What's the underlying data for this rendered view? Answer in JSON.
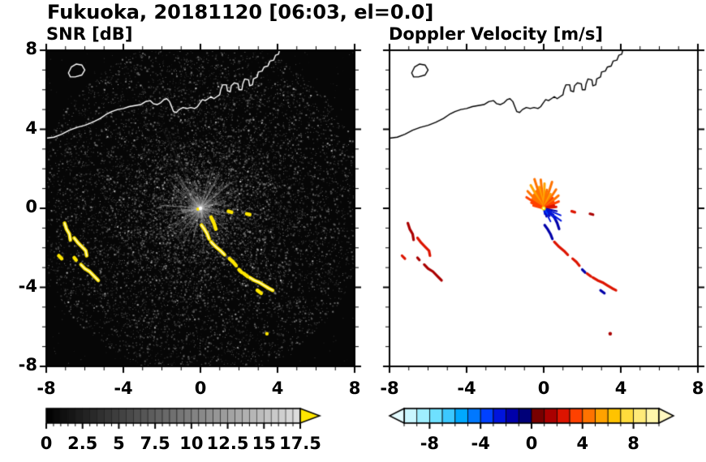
{
  "page": {
    "title": "Fukuoka, 20181120 [06:03, el=0.0]"
  },
  "chart_data": {
    "type": "heatmap",
    "variant": "radar_ppi_pair",
    "site": "Fukuoka",
    "date": "20181120",
    "time": "06:03",
    "elevation": "0.0",
    "axes": {
      "xlim": [
        -8,
        8
      ],
      "ylim": [
        -8,
        8
      ],
      "xtick_values": [
        -8,
        -4,
        0,
        4,
        8
      ],
      "xtick_labels": [
        "-8",
        "-4",
        "0",
        "4",
        "8"
      ],
      "ytick_values": [
        8,
        4,
        0,
        -4,
        -8
      ],
      "ytick_labels": [
        "8",
        "4",
        "0",
        "-4",
        "-8"
      ],
      "minor_step": 1
    },
    "radar_center": [
      0,
      0
    ],
    "panels": [
      {
        "id": "snr",
        "title": "SNR [dB]",
        "bg": "#060606",
        "coast_color": "#ffffff",
        "echo_color": "#ffe600",
        "colorbar": {
          "min": 0,
          "max": 17.5,
          "step": 0.5,
          "tick_values": [
            0,
            2.5,
            5,
            7.5,
            10,
            12.5,
            15,
            17.5
          ],
          "tick_labels": [
            "0",
            "2.5",
            "5",
            "7.5",
            "10",
            "12.5",
            "15",
            "17.5"
          ],
          "style": "grayscale",
          "over_color": "#ffe600"
        }
      },
      {
        "id": "doppler",
        "title": "Doppler Velocity [m/s]",
        "bg": "#ffffff",
        "coast_color": "#000000",
        "colorbar": {
          "min": -10,
          "max": 10,
          "step": 1,
          "tick_values": [
            -8,
            -4,
            0,
            4,
            8
          ],
          "tick_labels": [
            "-8",
            "-4",
            "0",
            "4",
            "8"
          ],
          "colors": [
            "#c9f6ff",
            "#9feeff",
            "#6ee0ff",
            "#3cc8ff",
            "#00a8ff",
            "#0078ff",
            "#0041ff",
            "#0014dd",
            "#0000aa",
            "#000078",
            "#780000",
            "#aa0000",
            "#dd1400",
            "#ff4100",
            "#ff7300",
            "#ffa200",
            "#ffc300",
            "#ffdc3c",
            "#ffea78",
            "#fff6aa"
          ],
          "under_color": "#e4fbff",
          "over_color": "#fff7c0"
        }
      }
    ],
    "coastline": [
      [
        [
          -8.0,
          3.55
        ],
        [
          -7.6,
          3.6
        ],
        [
          -7.2,
          3.75
        ],
        [
          -6.8,
          3.95
        ],
        [
          -6.4,
          4.1
        ],
        [
          -6.0,
          4.2
        ],
        [
          -5.6,
          4.35
        ],
        [
          -5.2,
          4.55
        ],
        [
          -4.9,
          4.75
        ],
        [
          -4.6,
          4.9
        ],
        [
          -4.3,
          5.0
        ],
        [
          -4.0,
          5.05
        ],
        [
          -3.7,
          5.15
        ],
        [
          -3.4,
          5.2
        ],
        [
          -3.1,
          5.25
        ],
        [
          -2.85,
          5.4
        ],
        [
          -2.6,
          5.45
        ],
        [
          -2.45,
          5.3
        ],
        [
          -2.25,
          5.25
        ],
        [
          -2.05,
          5.35
        ],
        [
          -1.9,
          5.5
        ],
        [
          -1.75,
          5.55
        ],
        [
          -1.6,
          5.4
        ],
        [
          -1.5,
          5.15
        ],
        [
          -1.4,
          4.9
        ],
        [
          -1.25,
          4.85
        ],
        [
          -1.1,
          5.0
        ],
        [
          -0.9,
          5.1
        ],
        [
          -0.7,
          5.05
        ],
        [
          -0.5,
          5.1
        ],
        [
          -0.3,
          5.05
        ],
        [
          -0.15,
          5.15
        ],
        [
          -0.05,
          5.3
        ],
        [
          0.1,
          5.5
        ],
        [
          0.25,
          5.45
        ],
        [
          0.4,
          5.55
        ],
        [
          0.55,
          5.65
        ],
        [
          0.7,
          5.55
        ],
        [
          0.85,
          5.65
        ],
        [
          1.0,
          5.75
        ],
        [
          1.05,
          6.0
        ],
        [
          1.15,
          6.25
        ],
        [
          1.35,
          6.25
        ],
        [
          1.4,
          5.95
        ],
        [
          1.55,
          5.9
        ],
        [
          1.6,
          6.2
        ],
        [
          1.75,
          6.35
        ],
        [
          1.95,
          6.3
        ],
        [
          2.0,
          6.0
        ],
        [
          2.15,
          6.0
        ],
        [
          2.2,
          6.3
        ],
        [
          2.3,
          6.55
        ],
        [
          2.5,
          6.5
        ],
        [
          2.55,
          6.2
        ],
        [
          2.7,
          6.25
        ],
        [
          2.75,
          6.55
        ],
        [
          2.95,
          6.65
        ],
        [
          3.0,
          6.9
        ],
        [
          3.2,
          6.95
        ],
        [
          3.3,
          7.15
        ],
        [
          3.5,
          7.2
        ],
        [
          3.6,
          7.45
        ],
        [
          3.8,
          7.5
        ],
        [
          3.9,
          7.75
        ],
        [
          4.05,
          7.8
        ],
        [
          4.1,
          8.0
        ]
      ],
      [
        [
          -6.85,
          6.85
        ],
        [
          -6.7,
          7.15
        ],
        [
          -6.45,
          7.3
        ],
        [
          -6.15,
          7.25
        ],
        [
          -6.0,
          7.0
        ],
        [
          -6.15,
          6.75
        ],
        [
          -6.5,
          6.65
        ],
        [
          -6.75,
          6.65
        ],
        [
          -6.85,
          6.85
        ]
      ]
    ],
    "echoes": [
      {
        "pts": [
          [
            -7.05,
            -0.75
          ],
          [
            -6.95,
            -1.05
          ],
          [
            -6.8,
            -1.3
          ],
          [
            -6.75,
            -1.6
          ]
        ],
        "v": 1.5,
        "core": true
      },
      {
        "pts": [
          [
            -6.55,
            -1.5
          ],
          [
            -6.35,
            -1.75
          ],
          [
            -6.15,
            -1.95
          ],
          [
            -5.95,
            -2.15
          ],
          [
            -5.9,
            -2.4
          ]
        ],
        "v": 2.5,
        "core": true
      },
      {
        "pts": [
          [
            -6.2,
            -2.85
          ],
          [
            -6.0,
            -3.05
          ],
          [
            -5.75,
            -3.2
          ],
          [
            -5.5,
            -3.45
          ],
          [
            -5.3,
            -3.65
          ]
        ],
        "v": 1.5,
        "core": true
      },
      {
        "pts": [
          [
            -7.35,
            -2.4
          ],
          [
            -7.2,
            -2.55
          ]
        ],
        "v": 2.5,
        "core": false
      },
      {
        "pts": [
          [
            -6.55,
            -2.5
          ],
          [
            -6.45,
            -2.62
          ]
        ],
        "v": 1.5,
        "core": false
      },
      {
        "pts": [
          [
            0.05,
            -0.85
          ],
          [
            0.2,
            -1.05
          ],
          [
            0.35,
            -1.3
          ],
          [
            0.45,
            -1.55
          ]
        ],
        "v": -1.5,
        "core": true
      },
      {
        "pts": [
          [
            0.55,
            -1.7
          ],
          [
            0.8,
            -1.95
          ],
          [
            1.05,
            -2.15
          ],
          [
            1.25,
            -2.35
          ]
        ],
        "v": 2.5,
        "core": true
      },
      {
        "pts": [
          [
            1.5,
            -2.55
          ],
          [
            1.7,
            -2.72
          ],
          [
            1.85,
            -2.9
          ]
        ],
        "v": 2.5,
        "core": false
      },
      {
        "pts": [
          [
            2.0,
            -3.1
          ],
          [
            2.15,
            -3.25
          ]
        ],
        "v": -1.5,
        "core": false
      },
      {
        "pts": [
          [
            2.25,
            -3.3
          ],
          [
            2.45,
            -3.45
          ]
        ],
        "v": 2.5,
        "core": false
      },
      {
        "pts": [
          [
            2.55,
            -3.5
          ],
          [
            2.8,
            -3.65
          ],
          [
            3.05,
            -3.75
          ],
          [
            3.3,
            -3.9
          ],
          [
            3.55,
            -4.05
          ],
          [
            3.75,
            -4.15
          ]
        ],
        "v": 2.5,
        "core": true
      },
      {
        "pts": [
          [
            2.95,
            -4.15
          ],
          [
            3.15,
            -4.3
          ]
        ],
        "v": -1.5,
        "core": false
      },
      {
        "pts": [
          [
            1.45,
            -0.15
          ],
          [
            1.62,
            -0.2
          ]
        ],
        "v": 2.5,
        "core": false
      },
      {
        "pts": [
          [
            2.4,
            -0.28
          ],
          [
            2.56,
            -0.32
          ]
        ],
        "v": 1.5,
        "core": false
      },
      {
        "pts": [
          [
            3.45,
            -6.35
          ]
        ],
        "v": 1.5,
        "core": false
      },
      {
        "pts": [
          [
            0.55,
            -0.45
          ],
          [
            0.7,
            -0.75
          ],
          [
            0.8,
            -1.05
          ]
        ],
        "v": -1.5,
        "core": false
      }
    ],
    "fan_spokes": [
      {
        "a": 96,
        "l": 1.45,
        "v": 4.5
      },
      {
        "a": 102,
        "l": 1.1,
        "v": 5.5
      },
      {
        "a": 108,
        "l": 1.55,
        "v": 4.5
      },
      {
        "a": 114,
        "l": 0.95,
        "v": 4.5
      },
      {
        "a": 120,
        "l": 1.35,
        "v": 5.5
      },
      {
        "a": 127,
        "l": 0.85,
        "v": 4.5
      },
      {
        "a": 134,
        "l": 1.2,
        "v": 4.5
      },
      {
        "a": 141,
        "l": 0.75,
        "v": 4.5
      },
      {
        "a": 148,
        "l": 1.05,
        "v": 3.5
      },
      {
        "a": 156,
        "l": 0.7,
        "v": 3.5
      },
      {
        "a": 165,
        "l": 0.55,
        "v": 3.5
      },
      {
        "a": 88,
        "l": 1.25,
        "v": 5.5
      },
      {
        "a": 80,
        "l": 0.95,
        "v": 4.5
      },
      {
        "a": 72,
        "l": 1.4,
        "v": 4.5
      },
      {
        "a": 64,
        "l": 0.8,
        "v": 5.5
      },
      {
        "a": 56,
        "l": 1.15,
        "v": 4.5
      },
      {
        "a": 48,
        "l": 0.7,
        "v": 3.5
      },
      {
        "a": 40,
        "l": 1.0,
        "v": 4.5
      },
      {
        "a": 32,
        "l": 0.6,
        "v": 3.5
      },
      {
        "a": 24,
        "l": 0.85,
        "v": 3.5
      },
      {
        "a": 15,
        "l": 0.55,
        "v": 2.5
      },
      {
        "a": 6,
        "l": 0.65,
        "v": 2.5
      },
      {
        "a": -12,
        "l": 0.7,
        "v": -1.5
      },
      {
        "a": -22,
        "l": 0.95,
        "v": -2.5
      },
      {
        "a": -32,
        "l": 0.6,
        "v": -1.5
      },
      {
        "a": -42,
        "l": 0.85,
        "v": -2.5
      },
      {
        "a": -52,
        "l": 0.5,
        "v": -1.5
      },
      {
        "a": -62,
        "l": 0.75,
        "v": -2.5
      },
      {
        "a": -72,
        "l": 0.45,
        "v": -1.5
      },
      {
        "a": -35,
        "l": 1.1,
        "v": -2.5
      },
      {
        "a": -55,
        "l": 0.35,
        "v": -3.5
      },
      {
        "a": -80,
        "l": 0.3,
        "v": -2.5
      }
    ]
  }
}
